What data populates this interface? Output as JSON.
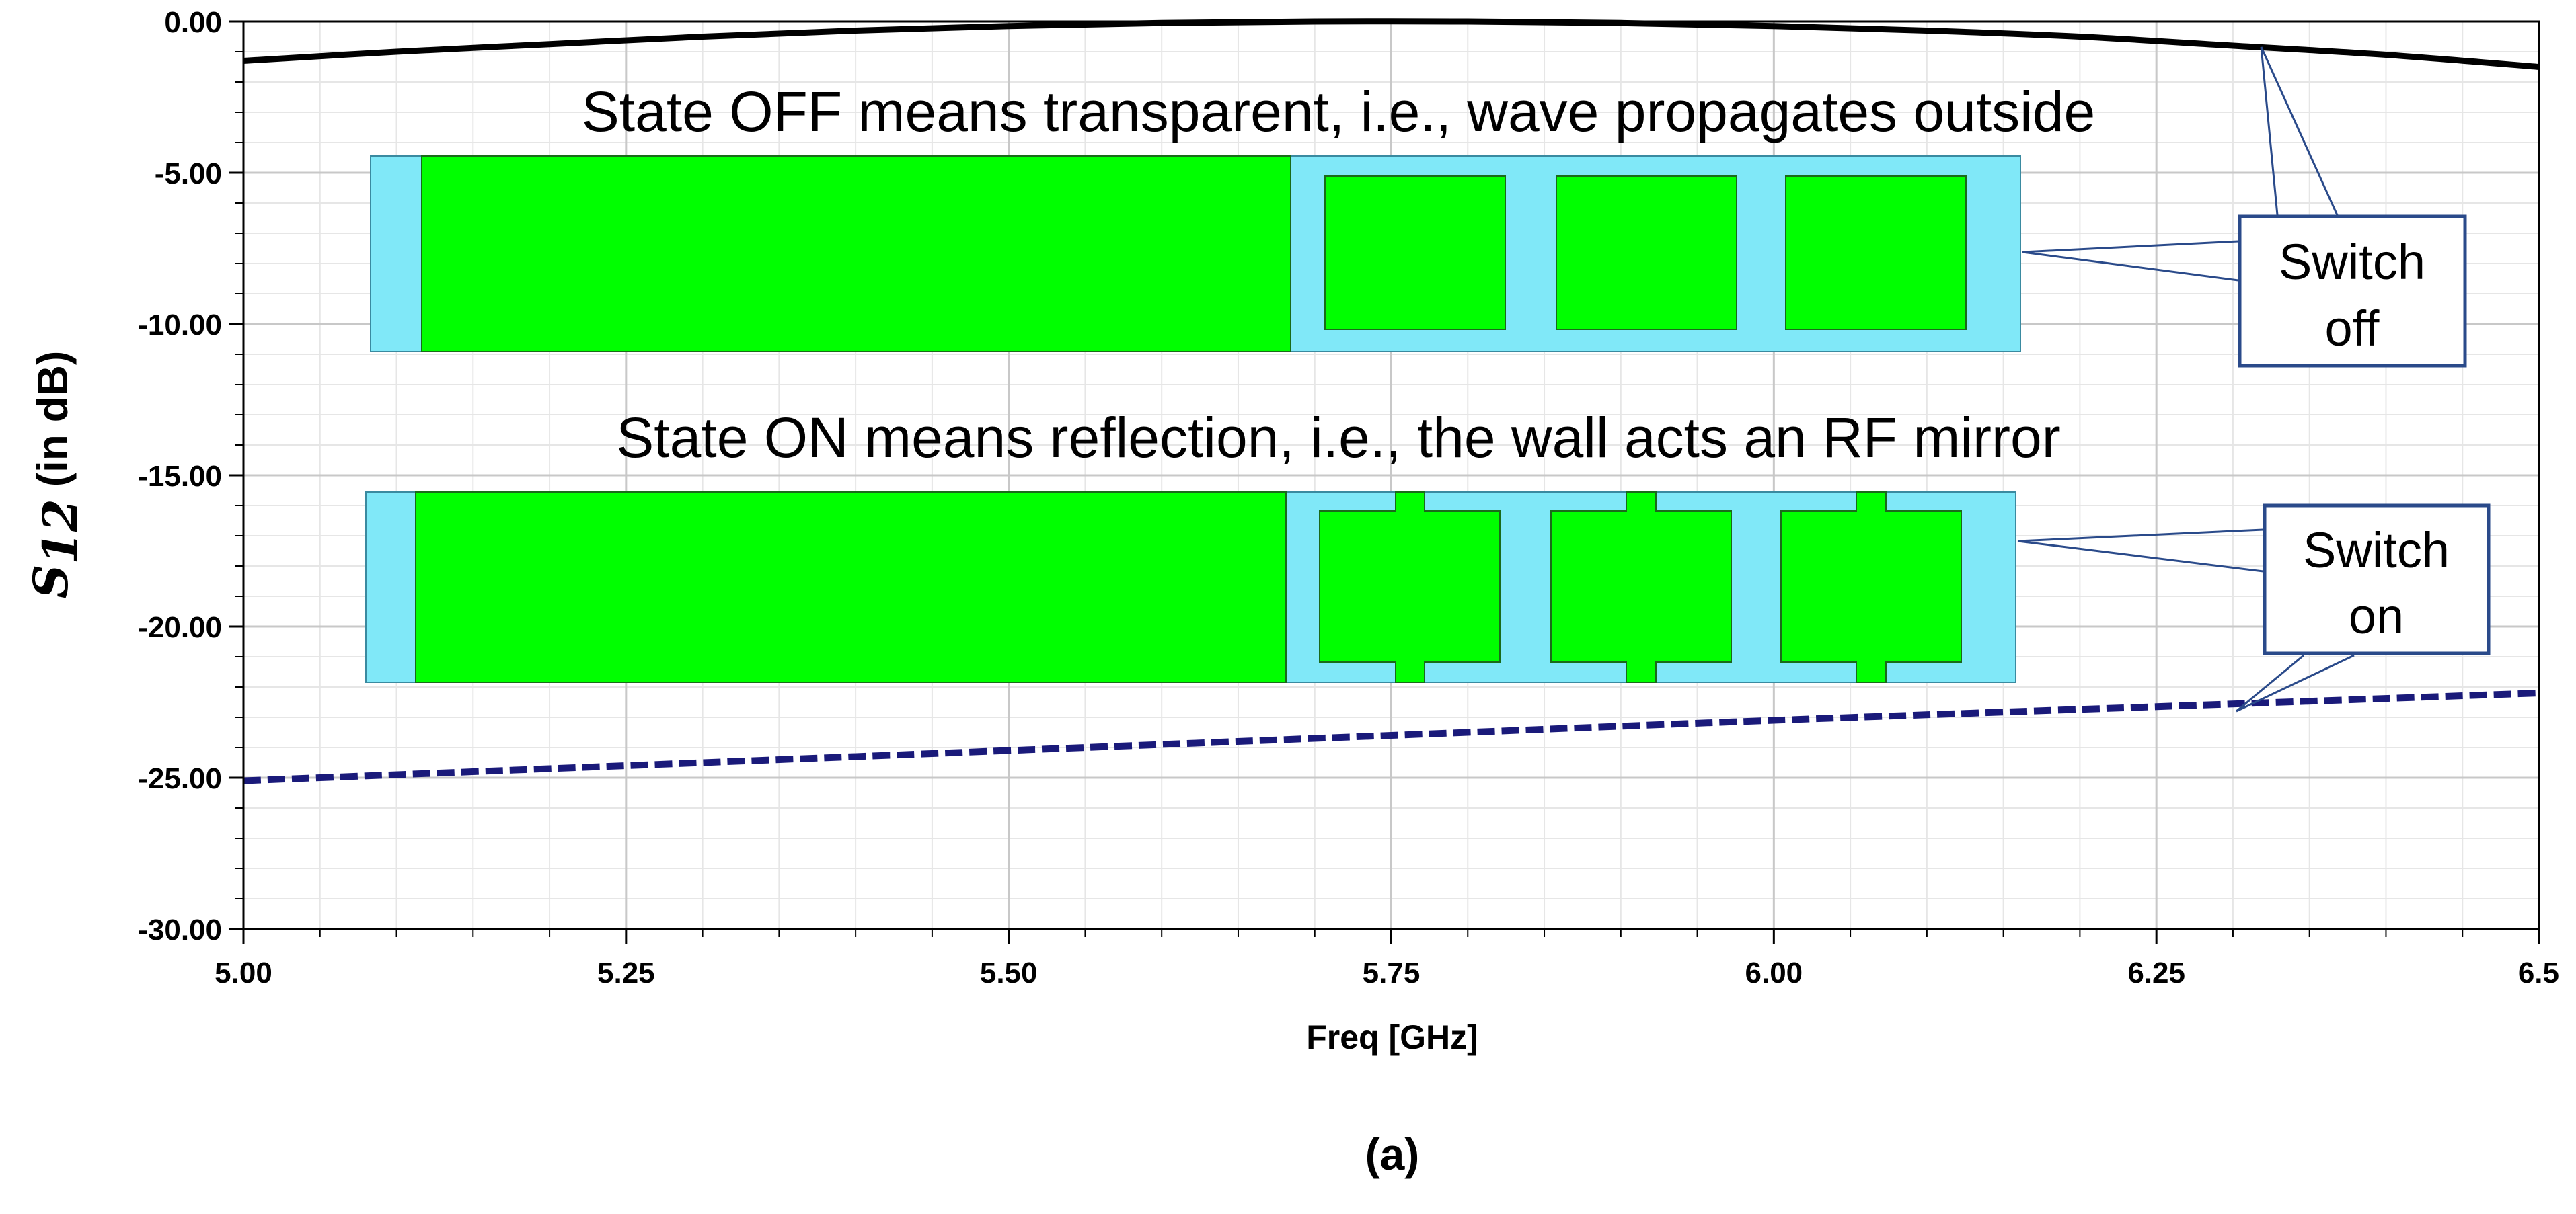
{
  "chart_data": {
    "type": "line",
    "title": "",
    "xlabel": "Freq [GHz]",
    "ylabel": "S12 (in dB)",
    "ylabel_parts": {
      "symbol": "S",
      "subscript": "12",
      "suffix": "(in dB)"
    },
    "xlim": [
      5.0,
      6.5
    ],
    "ylim": [
      -30,
      0
    ],
    "x_ticks": [
      {
        "value": 5.0,
        "label": "5.00"
      },
      {
        "value": 5.25,
        "label": "5.25"
      },
      {
        "value": 5.5,
        "label": "5.50"
      },
      {
        "value": 5.75,
        "label": "5.75"
      },
      {
        "value": 6.0,
        "label": "6.00"
      },
      {
        "value": 6.25,
        "label": "6.25"
      },
      {
        "value": 6.5,
        "label": "6.5"
      }
    ],
    "y_ticks": [
      {
        "value": 0,
        "label": "0.00"
      },
      {
        "value": -5,
        "label": "-5.00"
      },
      {
        "value": -10,
        "label": "-10.00"
      },
      {
        "value": -15,
        "label": "-15.00"
      },
      {
        "value": -20,
        "label": "-20.00"
      },
      {
        "value": -25,
        "label": "-25.00"
      },
      {
        "value": -30,
        "label": "-30.00"
      }
    ],
    "grid": true,
    "series": [
      {
        "name": "Switch off",
        "style": "solid",
        "color": "#000000",
        "x": [
          5.0,
          5.1,
          5.2,
          5.3,
          5.4,
          5.5,
          5.6,
          5.7,
          5.8,
          5.9,
          6.0,
          6.1,
          6.2,
          6.3,
          6.4,
          6.5
        ],
        "y": [
          -1.3,
          -1.0,
          -0.75,
          -0.5,
          -0.3,
          -0.15,
          -0.05,
          0.0,
          0.0,
          -0.05,
          -0.15,
          -0.3,
          -0.5,
          -0.8,
          -1.1,
          -1.5
        ]
      },
      {
        "name": "Switch on",
        "style": "dashed",
        "color": "#1a1a7a",
        "x": [
          5.0,
          5.25,
          5.5,
          5.75,
          6.0,
          6.25,
          6.5
        ],
        "y": [
          -25.1,
          -24.6,
          -24.1,
          -23.6,
          -23.1,
          -22.65,
          -22.2
        ]
      }
    ],
    "annotations": {
      "state_off_text": "State OFF means transparent, i.e.,  wave propagates outside",
      "state_on_text": "State ON means reflection, i.e.,  the wall acts an RF mirror",
      "switch_off_box": {
        "line1": "Switch",
        "line2": "off"
      },
      "switch_on_box": {
        "line1": "Switch",
        "line2": "on"
      }
    },
    "caption": "(a)"
  },
  "colors": {
    "pcb_green": "#00ff00",
    "substrate_cyan": "#80e8f8",
    "callout_blue": "#2a4a8a",
    "grid": "#d9d9d9"
  }
}
